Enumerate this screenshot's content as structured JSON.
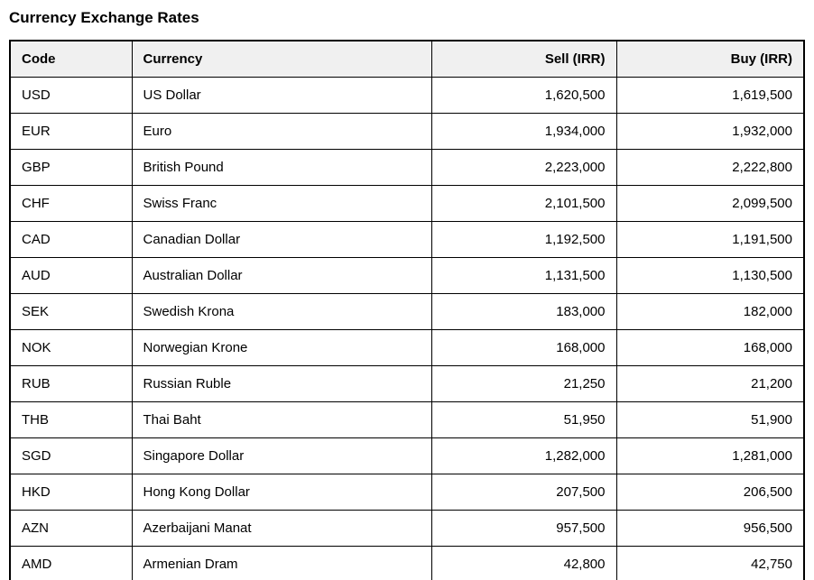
{
  "page": {
    "title": "Currency Exchange Rates"
  },
  "colors": {
    "page_background": "#ffffff",
    "header_background": "#f0f0f0",
    "border": "#000000",
    "text": "#000000"
  },
  "table": {
    "columns": [
      {
        "key": "code",
        "label": "Code",
        "align": "left"
      },
      {
        "key": "currency",
        "label": "Currency",
        "align": "left"
      },
      {
        "key": "sell",
        "label": "Sell (IRR)",
        "align": "right"
      },
      {
        "key": "buy",
        "label": "Buy (IRR)",
        "align": "right"
      }
    ],
    "rows": [
      {
        "code": "USD",
        "currency": "US Dollar",
        "sell": "1,620,500",
        "buy": "1,619,500"
      },
      {
        "code": "EUR",
        "currency": "Euro",
        "sell": "1,934,000",
        "buy": "1,932,000"
      },
      {
        "code": "GBP",
        "currency": "British Pound",
        "sell": "2,223,000",
        "buy": "2,222,800"
      },
      {
        "code": "CHF",
        "currency": "Swiss Franc",
        "sell": "2,101,500",
        "buy": "2,099,500"
      },
      {
        "code": "CAD",
        "currency": "Canadian Dollar",
        "sell": "1,192,500",
        "buy": "1,191,500"
      },
      {
        "code": "AUD",
        "currency": "Australian Dollar",
        "sell": "1,131,500",
        "buy": "1,130,500"
      },
      {
        "code": "SEK",
        "currency": "Swedish Krona",
        "sell": "183,000",
        "buy": "182,000"
      },
      {
        "code": "NOK",
        "currency": "Norwegian Krone",
        "sell": "168,000",
        "buy": "168,000"
      },
      {
        "code": "RUB",
        "currency": "Russian Ruble",
        "sell": "21,250",
        "buy": "21,200"
      },
      {
        "code": "THB",
        "currency": "Thai Baht",
        "sell": "51,950",
        "buy": "51,900"
      },
      {
        "code": "SGD",
        "currency": "Singapore Dollar",
        "sell": "1,282,000",
        "buy": "1,281,000"
      },
      {
        "code": "HKD",
        "currency": "Hong Kong Dollar",
        "sell": "207,500",
        "buy": "206,500"
      },
      {
        "code": "AZN",
        "currency": "Azerbaijani Manat",
        "sell": "957,500",
        "buy": "956,500"
      },
      {
        "code": "AMD",
        "currency": "Armenian Dram",
        "sell": "42,800",
        "buy": "42,750"
      }
    ]
  }
}
